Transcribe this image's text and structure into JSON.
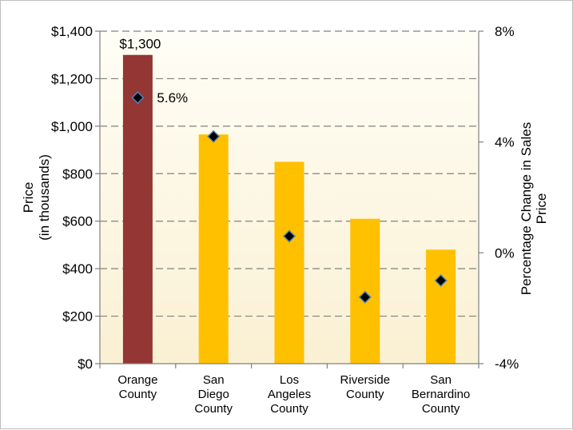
{
  "chart_data": {
    "type": "bar",
    "categories": [
      [
        "Orange",
        "County"
      ],
      [
        "San",
        "Diego",
        "County"
      ],
      [
        "Los",
        "Angeles",
        "County"
      ],
      [
        "Riverside",
        "County"
      ],
      [
        "San",
        "Bernardino",
        "County"
      ]
    ],
    "series": [
      {
        "values": [
          1300,
          965,
          850,
          610,
          480
        ],
        "axis": "left",
        "colors": [
          "#943634",
          "#ffc000",
          "#ffc000",
          "#ffc000",
          "#ffc000"
        ]
      },
      {
        "type": "scatter",
        "axis": "right",
        "values": [
          5.6,
          4.2,
          0.6,
          -1.6,
          -1.0
        ],
        "marker": "diamond",
        "marker_color": "#000000",
        "marker_edge": "#4f81bd"
      }
    ],
    "bar_labels": [
      {
        "index": 0,
        "text": "$1,300"
      }
    ],
    "point_labels": [
      {
        "index": 0,
        "text": "5.6%"
      }
    ],
    "ylabel": [
      "Price",
      "(in thousands)"
    ],
    "ylim": [
      0,
      1400
    ],
    "yticks": [
      "$0",
      "$200",
      "$400",
      "$600",
      "$800",
      "$1,000",
      "$1,200",
      "$1,400"
    ],
    "y2label": [
      "Percentage Change in Sales",
      "Price"
    ],
    "y2lim": [
      -4,
      8
    ],
    "y2ticks": [
      "-4%",
      "0%",
      "4%",
      "8%"
    ],
    "grid": true,
    "plot_background": [
      "#fffef6",
      "#faf0d3"
    ]
  }
}
